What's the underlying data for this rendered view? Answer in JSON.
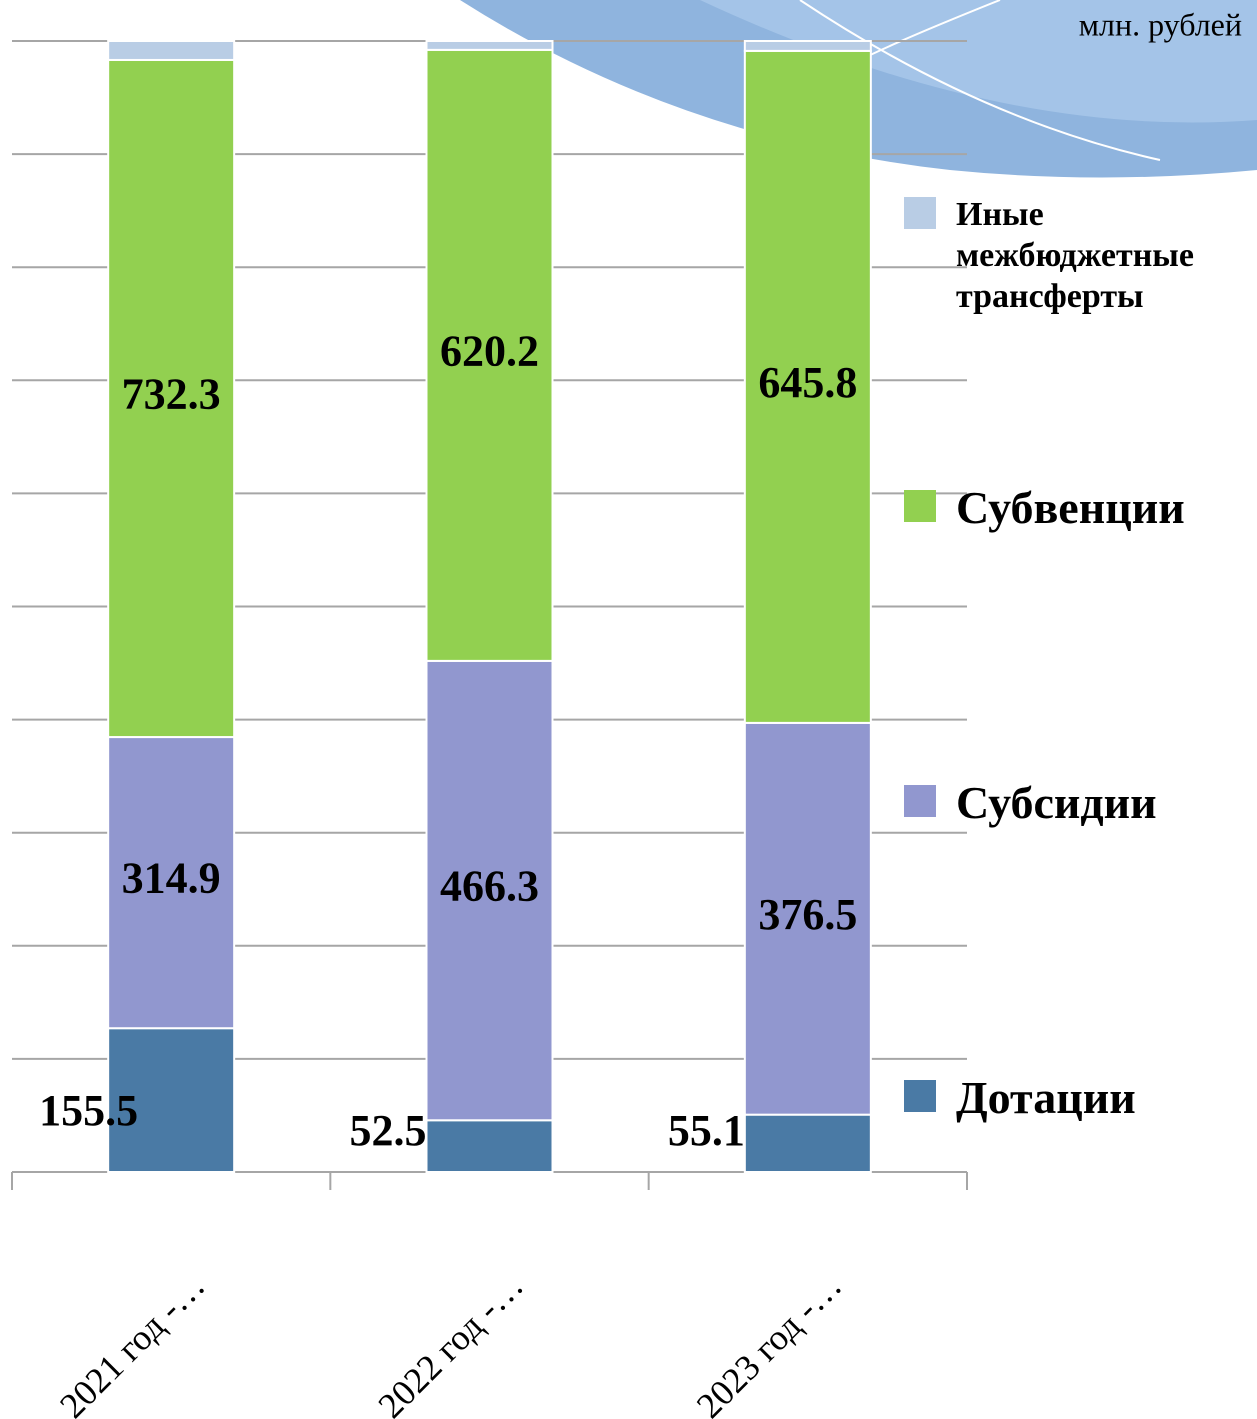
{
  "chart_data": {
    "type": "bar",
    "stacking": "percent",
    "unit_label": "млн. рублей",
    "categories": [
      "2021 год -…",
      "2022 год -…",
      "2023 год -…"
    ],
    "series": [
      {
        "name": "Дотации",
        "color": "#4a7aa5",
        "values": [
          155.5,
          52.5,
          55.1
        ],
        "labels": true
      },
      {
        "name": "Субсидии",
        "color": "#9197cf",
        "values": [
          314.9,
          466.3,
          376.5
        ],
        "labels": true
      },
      {
        "name": "Субвенции",
        "color": "#92d050",
        "values": [
          732.3,
          620.2,
          645.8
        ],
        "labels": true
      },
      {
        "name": "Иные межбюджетные трансферты",
        "color": "#b9cde5",
        "values": [
          20.5,
          9,
          9.5
        ],
        "labels": false
      }
    ],
    "ylim": [
      0,
      100
    ],
    "yticks": [
      0,
      10,
      20,
      30,
      40,
      50,
      60,
      70,
      80,
      90,
      100
    ],
    "grid": true,
    "legend": "right"
  }
}
